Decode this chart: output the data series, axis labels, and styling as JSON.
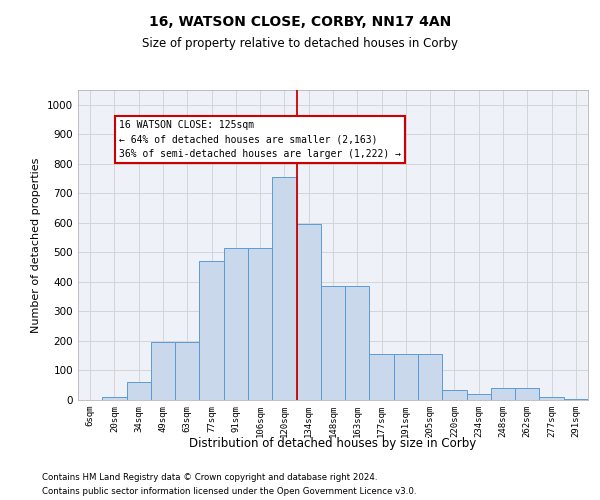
{
  "title": "16, WATSON CLOSE, CORBY, NN17 4AN",
  "subtitle": "Size of property relative to detached houses in Corby",
  "xlabel": "Distribution of detached houses by size in Corby",
  "ylabel": "Number of detached properties",
  "footnote1": "Contains HM Land Registry data © Crown copyright and database right 2024.",
  "footnote2": "Contains public sector information licensed under the Open Government Licence v3.0.",
  "categories": [
    "6sqm",
    "20sqm",
    "34sqm",
    "49sqm",
    "63sqm",
    "77sqm",
    "91sqm",
    "106sqm",
    "120sqm",
    "134sqm",
    "148sqm",
    "163sqm",
    "177sqm",
    "191sqm",
    "205sqm",
    "220sqm",
    "234sqm",
    "248sqm",
    "262sqm",
    "277sqm",
    "291sqm"
  ],
  "values": [
    0,
    10,
    60,
    195,
    195,
    470,
    515,
    515,
    755,
    595,
    385,
    385,
    155,
    155,
    155,
    35,
    20,
    40,
    40,
    10,
    5
  ],
  "bar_color": "#c9d9eb",
  "bar_edge_color": "#5b9bd5",
  "grid_color": "#d0d0d0",
  "bg_color": "#eef2f8",
  "annotation_box_color": "#cc0000",
  "property_line_color": "#cc0000",
  "property_label": "16 WATSON CLOSE: 125sqm",
  "annotation_line1": "← 64% of detached houses are smaller (2,163)",
  "annotation_line2": "36% of semi-detached houses are larger (1,222) →",
  "ylim": [
    0,
    1050
  ],
  "yticks": [
    0,
    100,
    200,
    300,
    400,
    500,
    600,
    700,
    800,
    900,
    1000
  ],
  "property_line_x": 8.5
}
